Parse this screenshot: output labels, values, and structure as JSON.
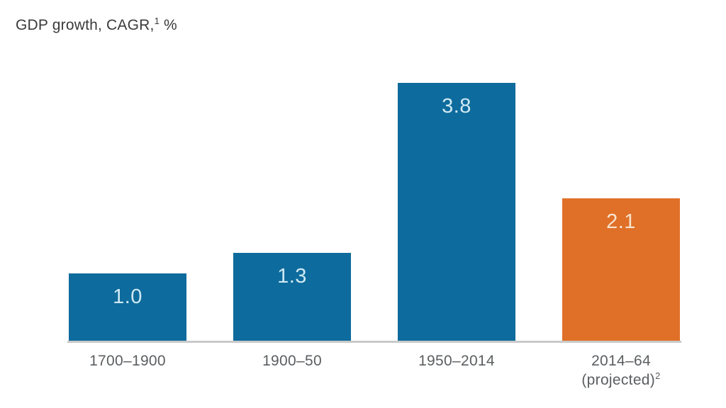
{
  "title": {
    "prefix": "GDP growth, CAGR,",
    "sup": "1",
    "suffix": " %"
  },
  "chart_data": {
    "type": "bar",
    "title": "GDP growth, CAGR,¹ %",
    "xlabel": "",
    "ylabel": "GDP growth CAGR, %",
    "ylim": [
      0,
      4
    ],
    "grid": false,
    "legend": "none",
    "axis_line_color": "#c9c9c9",
    "categories": [
      "1700–1900",
      "1900–50",
      "1950–2014",
      "2014–64 (projected)²"
    ],
    "values": [
      1.0,
      1.3,
      3.8,
      2.1
    ],
    "bars": [
      {
        "category_line1": "1700–1900",
        "value": 1.0,
        "value_label": "1.0",
        "color": "#0e6b9d",
        "value_label_color": "#cfe9f4"
      },
      {
        "category_line1": "1900–50",
        "value": 1.3,
        "value_label": "1.3",
        "color": "#0e6b9d",
        "value_label_color": "#cfe9f4"
      },
      {
        "category_line1": "1950–2014",
        "value": 3.8,
        "value_label": "3.8",
        "color": "#0e6b9d",
        "value_label_color": "#cfe9f4"
      },
      {
        "category_line1": "2014–64",
        "category_line2_prefix": "(projected)",
        "category_line2_sup": "2",
        "value": 2.1,
        "value_label": "2.1",
        "color": "#e07028",
        "value_label_color": "#f6e3cd"
      }
    ]
  }
}
